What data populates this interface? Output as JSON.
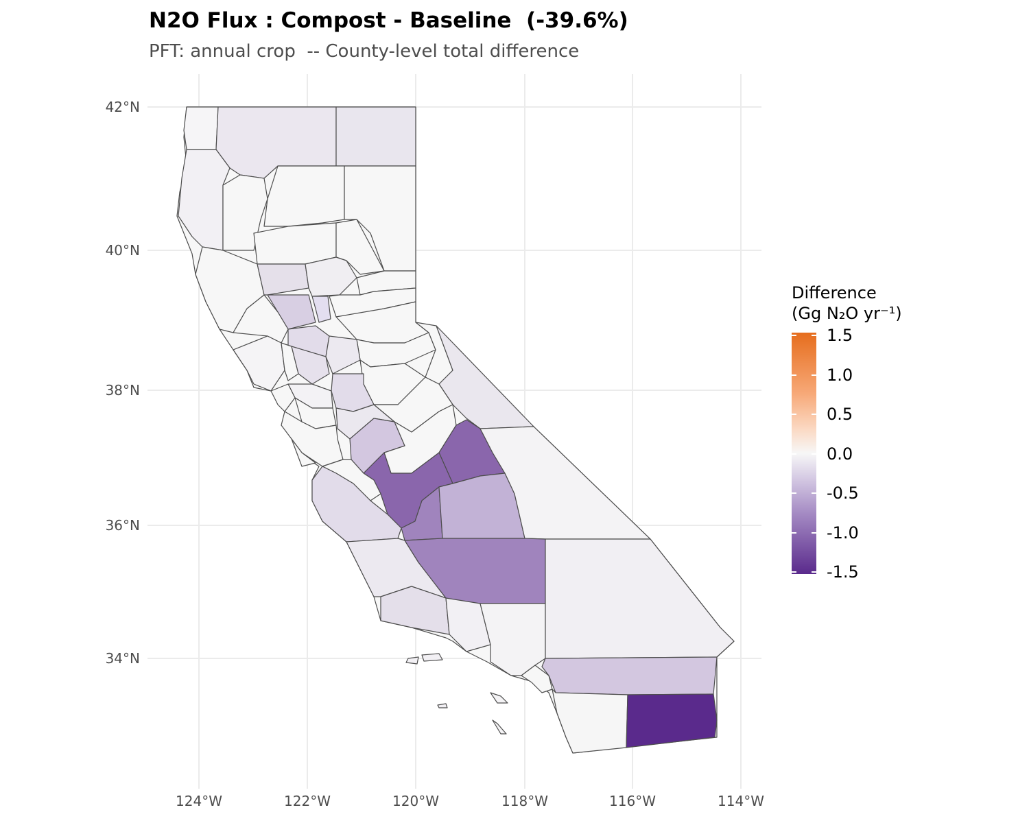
{
  "title": "N2O Flux : Compost - Baseline  (-39.6%)",
  "subtitle": "PFT: annual crop  -- County-level total difference",
  "map": {
    "x_ticks": [
      "124°W",
      "122°W",
      "120°W",
      "118°W",
      "116°W",
      "114°W"
    ],
    "y_ticks": [
      "42°N",
      "40°N",
      "38°N",
      "36°N",
      "34°N"
    ],
    "region": "California counties",
    "colors": {
      "near_zero": "#f4f3f5",
      "light": "#e6e2ec",
      "light_mid": "#d4c8e0",
      "mid": "#c2b2d6",
      "strong": "#a184bd",
      "darker": "#8c68ad",
      "darkest": "#5a2a8c",
      "border": "#4d4d4d"
    },
    "highlighted_counties_values": [
      {
        "value": -1.2
      },
      {
        "value": -1.5
      },
      {
        "value": -0.9
      },
      {
        "value": -0.9
      },
      {
        "value": -0.55
      },
      {
        "value": -0.45
      },
      {
        "value": -0.45
      }
    ]
  },
  "legend": {
    "title_line1": "Difference",
    "title_line2": "(Gg N₂O yr⁻¹)",
    "labels": [
      "1.5",
      "1.0",
      "0.5",
      "0.0",
      "-0.5",
      "-1.0",
      "-1.5"
    ],
    "min": -1.5,
    "max": 1.5,
    "color_high": "#e66d1d",
    "color_zero": "#f7f7f7",
    "color_low": "#5a2a8c"
  }
}
